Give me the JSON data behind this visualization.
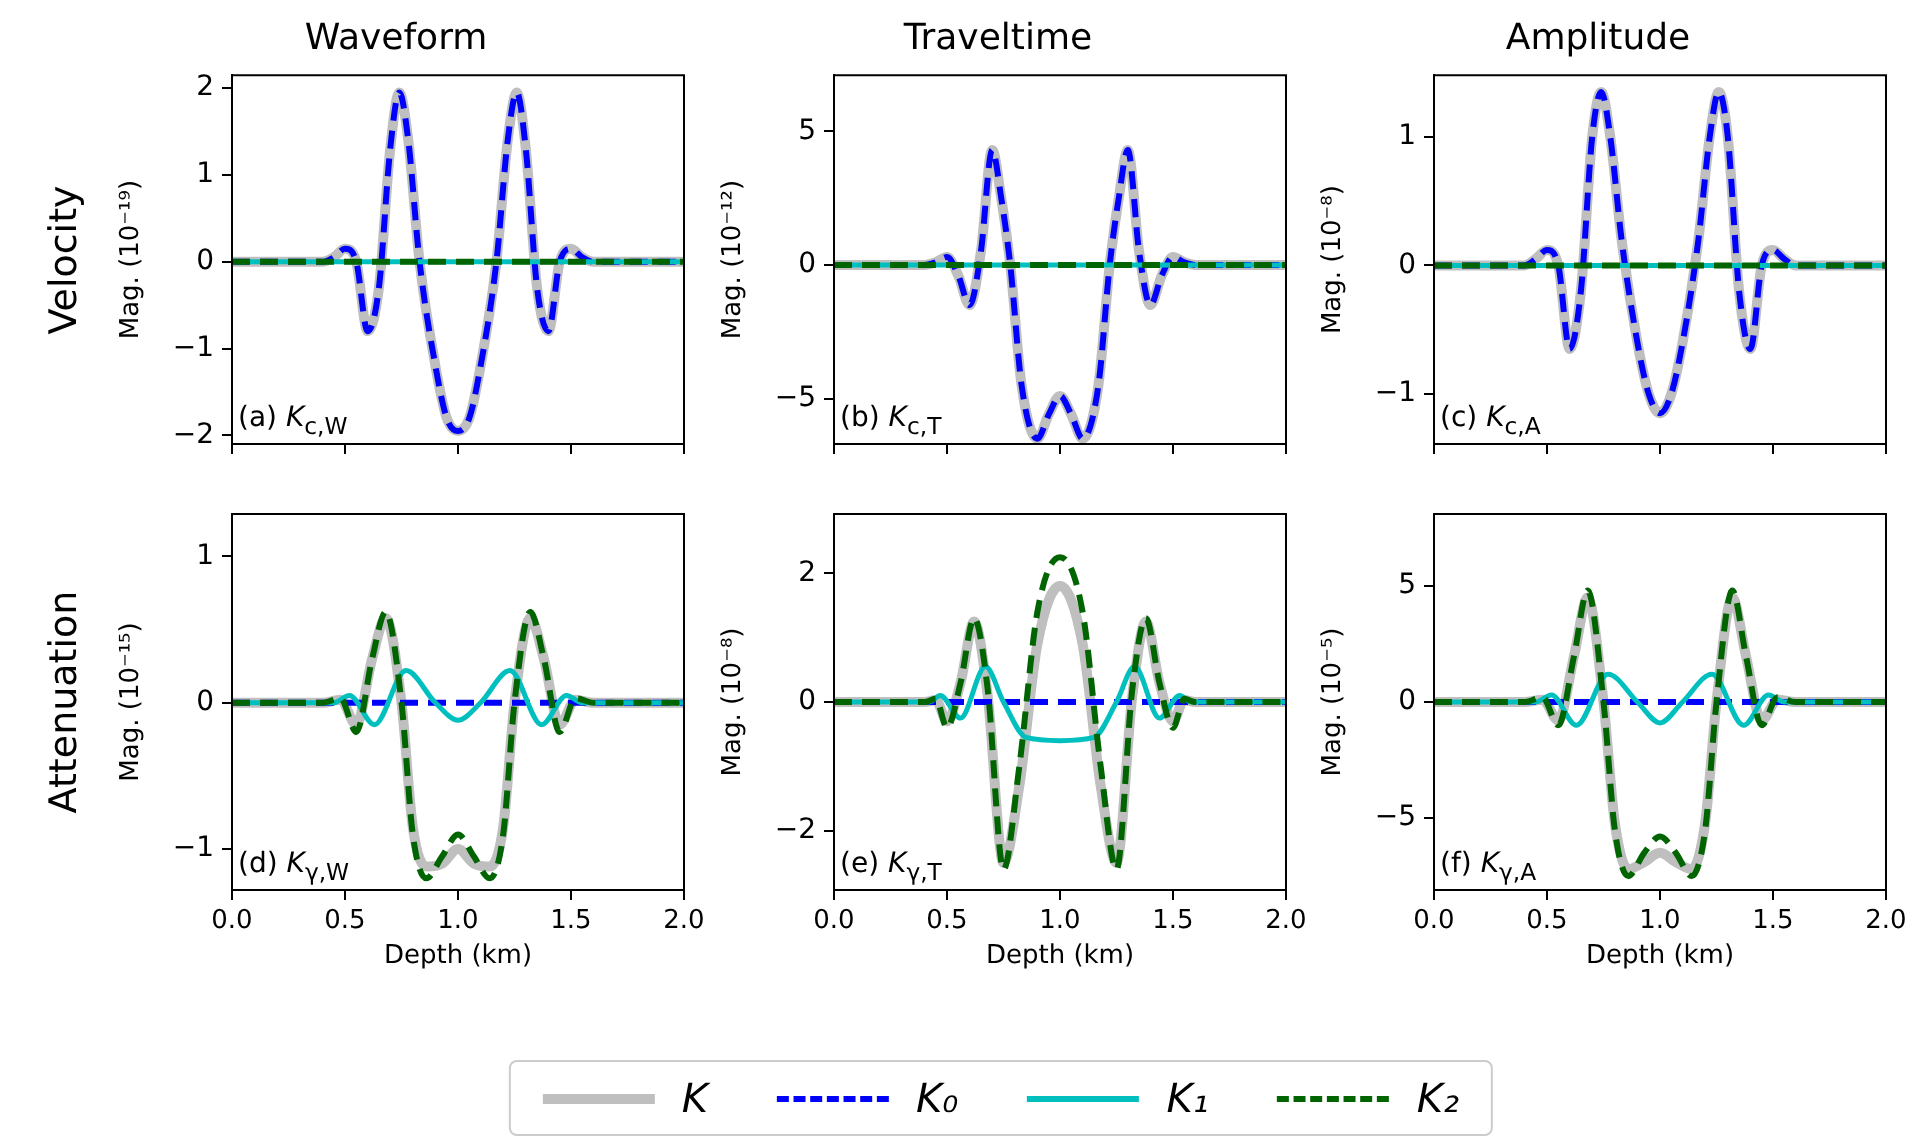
{
  "chart_data": [
    {
      "type": "line",
      "title": "Waveform",
      "ylabel": "Mag. (10⁻¹⁹)",
      "annotations": [
        "(a) K$_{c,W}$",
        "Velocity"
      ],
      "legend": "bottom",
      "xlim": [
        0,
        2
      ],
      "xticks": [
        0,
        0.5,
        1,
        1.5,
        2
      ],
      "ylim": [
        -2.1,
        2.15
      ],
      "yticks": [
        -2,
        -1,
        0,
        1,
        2
      ],
      "tick_labels": "y",
      "marker": "none",
      "x": [
        0,
        0.4,
        0.45,
        0.5,
        0.55,
        0.6,
        0.65,
        0.7,
        0.74,
        0.78,
        0.83,
        0.9,
        0.95,
        1.0,
        1.05,
        1.1,
        1.17,
        1.22,
        1.26,
        1.3,
        1.35,
        1.4,
        1.45,
        1.5,
        1.55,
        1.6,
        2.0
      ],
      "series": [
        {
          "name": "K",
          "color": "#bfbfbf",
          "line_style": "solid",
          "values": [
            0,
            0,
            0.05,
            0.15,
            0,
            -0.8,
            -0.3,
            1.3,
            1.95,
            1.4,
            0,
            -1.2,
            -1.8,
            -1.95,
            -1.8,
            -1.2,
            0,
            1.4,
            1.95,
            1.3,
            -0.3,
            -0.8,
            0,
            0.15,
            0.05,
            0,
            0
          ]
        },
        {
          "name": "K₀",
          "color": "#0000ff",
          "line_style": "dashed",
          "values": [
            0,
            0,
            0.05,
            0.15,
            0,
            -0.8,
            -0.3,
            1.3,
            1.95,
            1.4,
            0,
            -1.2,
            -1.8,
            -1.95,
            -1.8,
            -1.2,
            0,
            1.4,
            1.95,
            1.3,
            -0.3,
            -0.8,
            0,
            0.15,
            0.05,
            0,
            0
          ]
        },
        {
          "name": "K₁",
          "color": "#00bfbf",
          "line_style": "solid",
          "x": [
            0,
            0.5,
            1,
            1.5,
            2
          ],
          "values": [
            0,
            0,
            0,
            0,
            0
          ]
        },
        {
          "name": "K₂",
          "color": "#006400",
          "line_style": "dashed",
          "x": [
            0,
            0.5,
            1,
            1.5,
            2
          ],
          "values": [
            0,
            0,
            0,
            0,
            0
          ]
        }
      ]
    },
    {
      "type": "line",
      "title": "Traveltime",
      "ylabel": "Mag. (10⁻¹²)",
      "annotations": [
        "(b) K$_{c,T}$"
      ],
      "xlim": [
        0,
        2
      ],
      "xticks": [
        0,
        0.5,
        1,
        1.5,
        2
      ],
      "ylim": [
        -6.7,
        7.1
      ],
      "yticks": [
        -5,
        0,
        5
      ],
      "tick_labels": "y",
      "marker": "none",
      "x": [
        0,
        0.4,
        0.45,
        0.5,
        0.55,
        0.6,
        0.65,
        0.7,
        0.74,
        0.78,
        0.83,
        0.9,
        0.95,
        1.0,
        1.05,
        1.1,
        1.17,
        1.22,
        1.26,
        1.3,
        1.35,
        1.4,
        1.45,
        1.5,
        1.55,
        1.6,
        2.0
      ],
      "series": [
        {
          "color": "#bfbfbf",
          "line_style": "solid",
          "values": [
            0,
            0,
            0.1,
            0.3,
            -0.4,
            -1.5,
            0.5,
            4.3,
            2.5,
            0,
            -4.5,
            -6.5,
            -5.6,
            -4.9,
            -5.6,
            -6.5,
            -4.5,
            0,
            2.5,
            4.3,
            0.5,
            -1.5,
            -0.4,
            0.3,
            0.1,
            0,
            0
          ]
        },
        {
          "color": "#0000ff",
          "line_style": "dashed",
          "values": [
            0,
            0,
            0.1,
            0.3,
            -0.4,
            -1.5,
            0.5,
            4.3,
            2.5,
            0,
            -4.5,
            -6.5,
            -5.6,
            -4.9,
            -5.6,
            -6.5,
            -4.5,
            0,
            2.5,
            4.3,
            0.5,
            -1.5,
            -0.4,
            0.3,
            0.1,
            0,
            0
          ]
        },
        {
          "color": "#00bfbf",
          "line_style": "solid",
          "x": [
            0,
            0.5,
            1,
            1.5,
            2
          ],
          "values": [
            0,
            0,
            0,
            0,
            0
          ]
        },
        {
          "color": "#006400",
          "line_style": "dashed",
          "x": [
            0,
            0.5,
            1,
            1.5,
            2
          ],
          "values": [
            0,
            0,
            0,
            0,
            0
          ]
        }
      ]
    },
    {
      "type": "line",
      "title": "Amplitude",
      "ylabel": "Mag. (10⁻⁸)",
      "annotations": [
        "(c) K$_{c,A}$"
      ],
      "xlim": [
        0,
        2
      ],
      "xticks": [
        0,
        0.5,
        1,
        1.5,
        2
      ],
      "ylim": [
        -1.39,
        1.48
      ],
      "yticks": [
        -1,
        0,
        1
      ],
      "tick_labels": "y",
      "marker": "none",
      "x": [
        0,
        0.4,
        0.45,
        0.5,
        0.55,
        0.6,
        0.65,
        0.7,
        0.74,
        0.78,
        0.83,
        0.9,
        0.95,
        1.0,
        1.05,
        1.1,
        1.17,
        1.22,
        1.26,
        1.3,
        1.35,
        1.4,
        1.45,
        1.5,
        1.55,
        1.6,
        2.0
      ],
      "series": [
        {
          "color": "#bfbfbf",
          "line_style": "solid",
          "values": [
            0,
            0,
            0.05,
            0.12,
            0,
            -0.65,
            -0.2,
            1.0,
            1.35,
            1.0,
            0.2,
            -0.6,
            -1.0,
            -1.15,
            -1.0,
            -0.6,
            0.2,
            1.0,
            1.35,
            1.0,
            -0.2,
            -0.65,
            0,
            0.12,
            0.05,
            0,
            0
          ]
        },
        {
          "color": "#0000ff",
          "line_style": "dashed",
          "values": [
            0,
            0,
            0.05,
            0.12,
            0,
            -0.65,
            -0.2,
            1.0,
            1.35,
            1.0,
            0.2,
            -0.6,
            -1.0,
            -1.15,
            -1.0,
            -0.6,
            0.2,
            1.0,
            1.35,
            1.0,
            -0.2,
            -0.65,
            0,
            0.12,
            0.05,
            0,
            0
          ]
        },
        {
          "color": "#00bfbf",
          "line_style": "solid",
          "x": [
            0,
            0.5,
            1,
            1.5,
            2
          ],
          "values": [
            0,
            0,
            0,
            0,
            0
          ]
        },
        {
          "color": "#006400",
          "line_style": "dashed",
          "x": [
            0,
            0.5,
            1,
            1.5,
            2
          ],
          "values": [
            0,
            0,
            0,
            0,
            0
          ]
        }
      ]
    },
    {
      "type": "line",
      "xlabel": "Depth (km)",
      "ylabel": "Mag. (10⁻¹⁵)",
      "annotations": [
        "(d) K$_{γ,W}$",
        "Attenuation"
      ],
      "xlim": [
        0,
        2
      ],
      "xticks": [
        {
          "value": 0,
          "label": "0.0"
        },
        {
          "value": 0.5,
          "label": "0.5"
        },
        {
          "value": 1,
          "label": "1.0"
        },
        {
          "value": 1.5,
          "label": "1.5"
        },
        {
          "value": 2,
          "label": "2.0"
        }
      ],
      "ylim": [
        -1.28,
        1.29
      ],
      "yticks": [
        -1,
        0,
        1
      ],
      "marker": "none",
      "x": [
        0,
        0.4,
        0.48,
        0.55,
        0.62,
        0.68,
        0.75,
        0.8,
        0.86,
        0.93,
        1.0,
        1.07,
        1.14,
        1.2,
        1.25,
        1.32,
        1.38,
        1.45,
        1.52,
        1.6,
        2.0
      ],
      "series": [
        {
          "color": "#bfbfbf",
          "line_style": "solid",
          "values": [
            0,
            0,
            0.02,
            -0.15,
            0.3,
            0.58,
            0,
            -0.85,
            -1.12,
            -1.1,
            -1.0,
            -1.1,
            -1.12,
            -0.85,
            0,
            0.58,
            0.3,
            -0.15,
            0.02,
            0,
            0
          ]
        },
        {
          "color": "#0000ff",
          "line_style": "dashed",
          "x": [
            0,
            0.5,
            1,
            1.5,
            2
          ],
          "values": [
            0,
            0,
            0,
            0,
            0
          ]
        },
        {
          "color": "#00bfbf",
          "line_style": "solid",
          "x": [
            0,
            0.45,
            0.52,
            0.63,
            0.77,
            0.9,
            1.0,
            1.1,
            1.23,
            1.37,
            1.48,
            1.55,
            2.0
          ],
          "values": [
            0,
            0,
            0.05,
            -0.15,
            0.22,
            0,
            -0.12,
            0,
            0.22,
            -0.15,
            0.05,
            0,
            0
          ]
        },
        {
          "color": "#006400",
          "line_style": "dashed",
          "values": [
            0,
            0,
            0.03,
            -0.2,
            0.3,
            0.62,
            0,
            -0.9,
            -1.2,
            -1.05,
            -0.9,
            -1.05,
            -1.2,
            -0.9,
            0,
            0.62,
            0.3,
            -0.2,
            0.03,
            0,
            0
          ]
        }
      ]
    },
    {
      "type": "line",
      "xlabel": "Depth (km)",
      "ylabel": "Mag. (10⁻⁸)",
      "annotations": [
        "(e) K$_{γ,T}$"
      ],
      "xlim": [
        0,
        2
      ],
      "xticks": [
        {
          "value": 0,
          "label": "0.0"
        },
        {
          "value": 0.5,
          "label": "0.5"
        },
        {
          "value": 1,
          "label": "1.0"
        },
        {
          "value": 1.5,
          "label": "1.5"
        },
        {
          "value": 2,
          "label": "2.0"
        }
      ],
      "ylim": [
        -2.92,
        2.92
      ],
      "yticks": [
        -2,
        0,
        2
      ],
      "marker": "none",
      "x": [
        0,
        0.4,
        0.45,
        0.5,
        0.56,
        0.62,
        0.68,
        0.75,
        0.82,
        0.9,
        1.0,
        1.1,
        1.18,
        1.25,
        1.32,
        1.38,
        1.44,
        1.5,
        1.55,
        1.6,
        2.0
      ],
      "series": [
        {
          "color": "#bfbfbf",
          "line_style": "solid",
          "values": [
            0,
            0,
            0.03,
            -0.3,
            0.3,
            1.25,
            0.1,
            -2.5,
            -1.3,
            0.9,
            1.8,
            0.9,
            -1.3,
            -2.5,
            0.1,
            1.25,
            0.3,
            -0.3,
            0.03,
            0,
            0
          ]
        },
        {
          "color": "#0000ff",
          "line_style": "dashed",
          "x": [
            0,
            0.5,
            1,
            1.5,
            2
          ],
          "values": [
            0,
            0,
            0,
            0,
            0
          ]
        },
        {
          "color": "#00bfbf",
          "line_style": "solid",
          "x": [
            0,
            0.42,
            0.47,
            0.56,
            0.67,
            0.75,
            0.85,
            1.0,
            1.15,
            1.25,
            1.33,
            1.44,
            1.53,
            1.58,
            2.0
          ],
          "values": [
            0,
            0,
            0.1,
            -0.25,
            0.55,
            0,
            -0.55,
            -0.6,
            -0.55,
            0,
            0.55,
            -0.25,
            0.1,
            0,
            0
          ]
        },
        {
          "color": "#006400",
          "line_style": "dashed",
          "values": [
            0,
            0,
            0.05,
            -0.4,
            0.3,
            1.3,
            0.2,
            -2.6,
            -1.0,
            1.4,
            2.25,
            1.4,
            -1.0,
            -2.6,
            0.2,
            1.3,
            0.3,
            -0.4,
            0.05,
            0,
            0
          ]
        }
      ]
    },
    {
      "type": "line",
      "xlabel": "Depth (km)",
      "ylabel": "Mag. (10⁻⁵)",
      "annotations": [
        "(f) K$_{γ,A}$"
      ],
      "xlim": [
        0,
        2
      ],
      "xticks": [
        {
          "value": 0,
          "label": "0.0"
        },
        {
          "value": 0.5,
          "label": "0.5"
        },
        {
          "value": 1,
          "label": "1.0"
        },
        {
          "value": 1.5,
          "label": "1.5"
        },
        {
          "value": 2,
          "label": "2.0"
        }
      ],
      "ylim": [
        -8.1,
        8.1
      ],
      "yticks": [
        -5,
        0,
        5
      ],
      "marker": "none",
      "x": [
        0,
        0.4,
        0.48,
        0.55,
        0.62,
        0.68,
        0.75,
        0.8,
        0.86,
        0.93,
        1.0,
        1.07,
        1.14,
        1.2,
        1.25,
        1.32,
        1.38,
        1.45,
        1.52,
        1.6,
        2.0
      ],
      "series": [
        {
          "color": "#bfbfbf",
          "line_style": "solid",
          "values": [
            0,
            0,
            0.1,
            -0.8,
            2.0,
            4.5,
            0,
            -5.2,
            -7.2,
            -6.9,
            -6.5,
            -6.9,
            -7.2,
            -5.2,
            0,
            4.5,
            2.0,
            -0.8,
            0.1,
            0,
            0
          ]
        },
        {
          "color": "#0000ff",
          "line_style": "dashed",
          "x": [
            0,
            0.5,
            1,
            1.5,
            2
          ],
          "values": [
            0,
            0,
            0,
            0,
            0
          ]
        },
        {
          "color": "#00bfbf",
          "line_style": "solid",
          "x": [
            0,
            0.45,
            0.52,
            0.63,
            0.77,
            0.9,
            1.0,
            1.1,
            1.23,
            1.37,
            1.48,
            1.55,
            2.0
          ],
          "values": [
            0,
            0,
            0.3,
            -1.0,
            1.2,
            0,
            -0.9,
            0,
            1.2,
            -1.0,
            0.3,
            0,
            0
          ]
        },
        {
          "color": "#006400",
          "line_style": "dashed",
          "values": [
            0,
            0,
            0.2,
            -1.0,
            2.0,
            4.8,
            0,
            -5.5,
            -7.5,
            -6.5,
            -5.8,
            -6.5,
            -7.5,
            -5.5,
            0,
            4.8,
            2.0,
            -1.0,
            0.2,
            0,
            0
          ]
        }
      ]
    }
  ]
}
